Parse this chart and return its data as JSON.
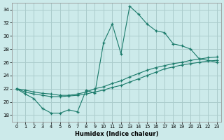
{
  "xlabel": "Humidex (Indice chaleur)",
  "background_color": "#cceaea",
  "grid_color": "#aacccc",
  "line_color": "#1a7a6a",
  "xlim": [
    -0.5,
    23.5
  ],
  "ylim": [
    17.0,
    35.0
  ],
  "yticks": [
    18,
    20,
    22,
    24,
    26,
    28,
    30,
    32,
    34
  ],
  "xticks": [
    0,
    1,
    2,
    3,
    4,
    5,
    6,
    7,
    8,
    9,
    10,
    11,
    12,
    13,
    14,
    15,
    16,
    17,
    18,
    19,
    20,
    21,
    22,
    23
  ],
  "series1_x": [
    0,
    1,
    2,
    3,
    4,
    5,
    6,
    7,
    8,
    9,
    10,
    11,
    12,
    13,
    14,
    15,
    16,
    17,
    18,
    19,
    20,
    21,
    22,
    23
  ],
  "series1_y": [
    22.0,
    21.2,
    20.5,
    19.0,
    18.3,
    18.3,
    18.8,
    18.5,
    21.8,
    21.3,
    29.0,
    31.8,
    27.3,
    34.5,
    33.3,
    31.8,
    30.8,
    30.5,
    28.8,
    28.5,
    28.0,
    26.5,
    26.3,
    26.0
  ],
  "series2_x": [
    0,
    1,
    2,
    3,
    4,
    5,
    6,
    7,
    8,
    9,
    10,
    11,
    12,
    13,
    14,
    15,
    16,
    17,
    18,
    19,
    20,
    21,
    22,
    23
  ],
  "series2_y": [
    22.0,
    21.5,
    21.2,
    21.0,
    20.8,
    20.8,
    20.9,
    21.0,
    21.2,
    21.5,
    21.8,
    22.2,
    22.5,
    23.0,
    23.5,
    24.0,
    24.5,
    25.0,
    25.3,
    25.6,
    25.8,
    26.0,
    26.2,
    26.3
  ],
  "series3_x": [
    0,
    1,
    2,
    3,
    4,
    5,
    6,
    7,
    8,
    9,
    10,
    11,
    12,
    13,
    14,
    15,
    16,
    17,
    18,
    19,
    20,
    21,
    22,
    23
  ],
  "series3_y": [
    22.0,
    21.8,
    21.5,
    21.3,
    21.2,
    21.0,
    21.0,
    21.2,
    21.5,
    22.0,
    22.3,
    22.8,
    23.2,
    23.8,
    24.3,
    24.8,
    25.2,
    25.5,
    25.8,
    26.0,
    26.3,
    26.5,
    26.7,
    26.8
  ]
}
